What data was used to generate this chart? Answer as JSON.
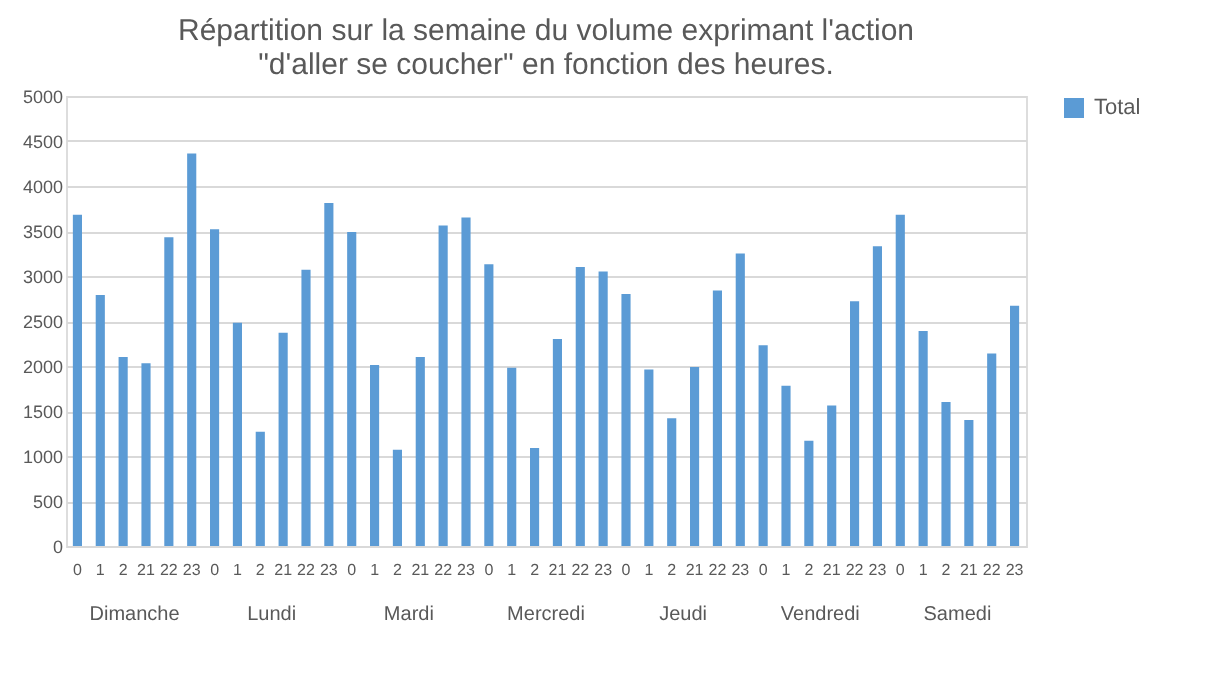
{
  "chart_data": {
    "type": "bar",
    "title": [
      "Répartition sur la semaine du volume exprimant l'action",
      "\"d'aller se coucher\" en fonction des heures."
    ],
    "categories": [
      "0",
      "1",
      "2",
      "21",
      "22",
      "23",
      "0",
      "1",
      "2",
      "21",
      "22",
      "23",
      "0",
      "1",
      "2",
      "21",
      "22",
      "23",
      "0",
      "1",
      "2",
      "21",
      "22",
      "23",
      "0",
      "1",
      "2",
      "21",
      "22",
      "23",
      "0",
      "1",
      "2",
      "21",
      "22",
      "23",
      "0",
      "1",
      "2",
      "21",
      "22",
      "23"
    ],
    "annotations": [
      "Dimanche",
      "Lundi",
      "Mardi",
      "Mercredi",
      "Jeudi",
      "Vendredi",
      "Samedi"
    ],
    "series": [
      {
        "name": "Total",
        "color": "#5b9bd5",
        "values": [
          3680,
          2790,
          2100,
          2030,
          3430,
          4360,
          3520,
          2480,
          1270,
          2370,
          3070,
          3810,
          3490,
          2010,
          1070,
          2100,
          3560,
          3650,
          3130,
          1980,
          1090,
          2300,
          3100,
          3050,
          2800,
          1960,
          1420,
          1990,
          2840,
          3250,
          2230,
          1780,
          1170,
          1560,
          2720,
          3330,
          3680,
          2390,
          1600,
          1400,
          2140,
          2670
        ]
      }
    ],
    "ylim": [
      0,
      5000
    ],
    "yticks": [
      0,
      500,
      1000,
      1500,
      2000,
      2500,
      3000,
      3500,
      4000,
      4500,
      5000
    ],
    "grid": "y",
    "legend": "right"
  }
}
